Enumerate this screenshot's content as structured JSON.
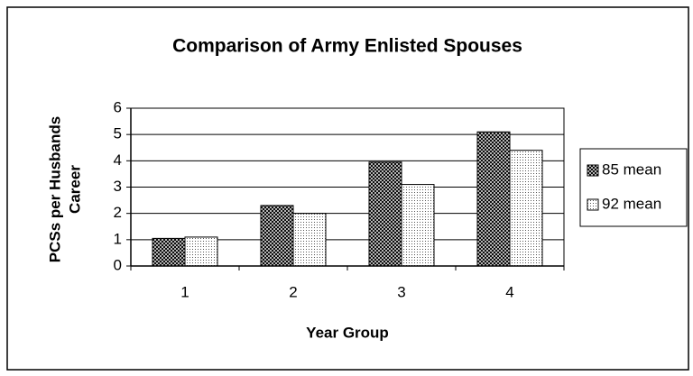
{
  "chart_data": {
    "type": "bar",
    "title": "Comparison of Army Enlisted Spouses",
    "x_label": "Year Group",
    "y_label": [
      "PCSs per Husbands",
      "Career"
    ],
    "categories": [
      "1",
      "2",
      "3",
      "4"
    ],
    "series": [
      {
        "name": "85 mean",
        "color": "#4a4a4a",
        "values": [
          1.05,
          2.3,
          3.95,
          5.1
        ]
      },
      {
        "name": "92 mean",
        "color": "#d8d8d8",
        "values": [
          1.1,
          2.0,
          3.1,
          4.4
        ]
      }
    ],
    "ylim": [
      0,
      6
    ],
    "yticks": [
      0,
      1,
      2,
      3,
      4,
      5,
      6
    ],
    "grid": true,
    "legend": "right"
  }
}
